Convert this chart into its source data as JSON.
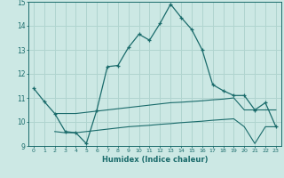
{
  "xlabel": "Humidex (Indice chaleur)",
  "background_color": "#cce8e4",
  "grid_color": "#b0d4cf",
  "line_color": "#1a6b6b",
  "xlim": [
    -0.5,
    23.5
  ],
  "ylim": [
    9,
    15
  ],
  "x_ticks": [
    0,
    1,
    2,
    3,
    4,
    5,
    6,
    7,
    8,
    9,
    10,
    11,
    12,
    13,
    14,
    15,
    16,
    17,
    18,
    19,
    20,
    21,
    22,
    23
  ],
  "y_ticks": [
    9,
    10,
    11,
    12,
    13,
    14,
    15
  ],
  "main_x": [
    0,
    1,
    2,
    3,
    4,
    5,
    6,
    7,
    8,
    9,
    10,
    11,
    12,
    13,
    14,
    15,
    16,
    17,
    18,
    19,
    20,
    21,
    22,
    23
  ],
  "main_y": [
    11.4,
    10.85,
    10.35,
    9.6,
    9.55,
    9.1,
    10.5,
    12.3,
    12.35,
    13.1,
    13.65,
    13.4,
    14.1,
    14.9,
    14.35,
    13.85,
    13.0,
    11.55,
    11.3,
    11.1,
    11.1,
    10.5,
    10.8,
    9.8
  ],
  "upper_x": [
    2,
    3,
    4,
    5,
    6,
    7,
    8,
    9,
    10,
    11,
    12,
    13,
    14,
    15,
    16,
    17,
    18,
    19,
    20,
    21,
    22,
    23
  ],
  "upper_y": [
    10.35,
    10.35,
    10.35,
    10.4,
    10.45,
    10.5,
    10.55,
    10.6,
    10.65,
    10.7,
    10.75,
    10.8,
    10.82,
    10.85,
    10.88,
    10.92,
    10.95,
    11.0,
    10.5,
    10.5,
    10.5,
    10.5
  ],
  "lower_x": [
    2,
    3,
    4,
    5,
    6,
    7,
    8,
    9,
    10,
    11,
    12,
    13,
    14,
    15,
    16,
    17,
    18,
    19,
    20,
    21,
    22,
    23
  ],
  "lower_y": [
    9.6,
    9.55,
    9.55,
    9.6,
    9.65,
    9.7,
    9.75,
    9.8,
    9.83,
    9.86,
    9.9,
    9.93,
    9.97,
    10.0,
    10.03,
    10.07,
    10.1,
    10.13,
    9.8,
    9.1,
    9.8,
    9.8
  ]
}
